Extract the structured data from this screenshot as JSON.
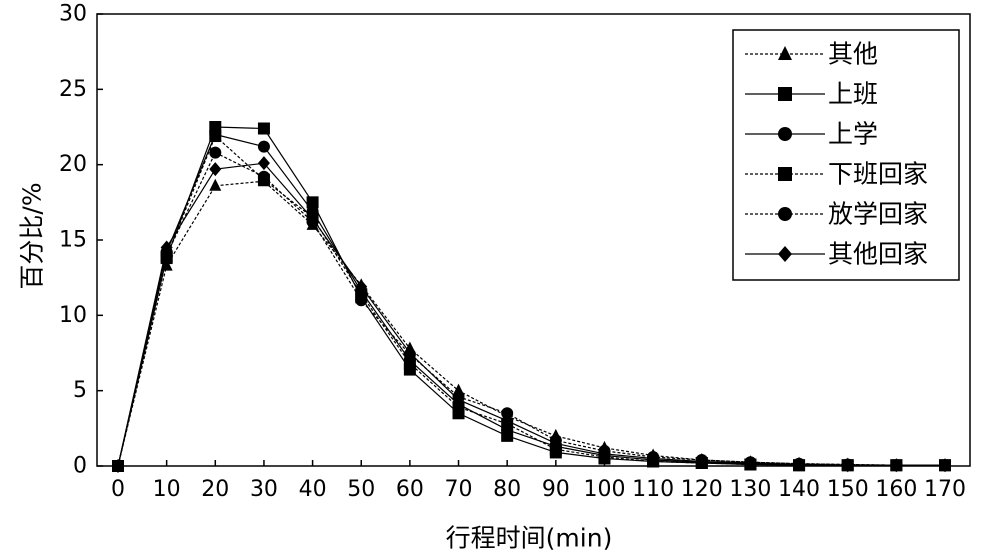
{
  "chart_data": {
    "type": "line",
    "title": "",
    "xlabel": "行程时间(min)",
    "ylabel": "百分比/%",
    "xlim": [
      0,
      170
    ],
    "ylim": [
      0,
      30
    ],
    "x_ticks": [
      "0",
      "10",
      "20",
      "30",
      "40",
      "50",
      "60",
      "70",
      "80",
      "90",
      "100",
      "110",
      "120",
      "130",
      "140",
      "150",
      "160",
      "170"
    ],
    "y_ticks": [
      "0",
      "5",
      "10",
      "15",
      "20",
      "25",
      "30"
    ],
    "grid": false,
    "legend_position": "top-right",
    "series": [
      {
        "name": "其他",
        "marker": "triangle",
        "line": "dashed",
        "x": [
          0,
          10,
          20,
          30,
          40,
          50,
          60,
          70,
          80,
          90,
          100,
          110,
          120,
          130,
          140,
          150,
          160,
          170
        ],
        "y": [
          0,
          13.3,
          18.6,
          18.9,
          16.0,
          12.0,
          7.8,
          5.0,
          3.3,
          2.0,
          1.2,
          0.7,
          0.4,
          0.25,
          0.15,
          0.1,
          0.05,
          0.05
        ]
      },
      {
        "name": "上班",
        "marker": "square",
        "line": "solid",
        "x": [
          0,
          10,
          20,
          30,
          40,
          50,
          60,
          70,
          80,
          90,
          100,
          110,
          120,
          130,
          140,
          150,
          160,
          170
        ],
        "y": [
          0,
          13.8,
          22.5,
          22.4,
          17.5,
          11.2,
          6.4,
          3.5,
          2.0,
          0.9,
          0.5,
          0.3,
          0.2,
          0.1,
          0.05,
          0.05,
          0.05,
          0.05
        ]
      },
      {
        "name": "上学",
        "marker": "circle",
        "line": "solid",
        "x": [
          0,
          10,
          20,
          30,
          40,
          50,
          60,
          70,
          80,
          90,
          100,
          110,
          120,
          130,
          140,
          150,
          160,
          170
        ],
        "y": [
          0,
          14.2,
          22.0,
          21.2,
          16.9,
          11.6,
          7.0,
          4.1,
          2.4,
          1.3,
          0.7,
          0.4,
          0.25,
          0.15,
          0.1,
          0.05,
          0.05,
          0.05
        ]
      },
      {
        "name": "下班回家",
        "marker": "square",
        "line": "dashed",
        "x": [
          0,
          10,
          20,
          30,
          40,
          50,
          60,
          70,
          80,
          90,
          100,
          110,
          120,
          130,
          140,
          150,
          160,
          170
        ],
        "y": [
          0,
          13.9,
          21.9,
          19.0,
          16.5,
          11.4,
          6.8,
          3.9,
          2.8,
          1.1,
          0.6,
          0.3,
          0.2,
          0.1,
          0.05,
          0.05,
          0.05,
          0.05
        ]
      },
      {
        "name": "放学回家",
        "marker": "circle",
        "line": "dashed",
        "x": [
          0,
          10,
          20,
          30,
          40,
          50,
          60,
          70,
          80,
          90,
          100,
          110,
          120,
          130,
          140,
          150,
          160,
          170
        ],
        "y": [
          0,
          14.0,
          20.8,
          19.2,
          16.2,
          11.0,
          7.4,
          4.6,
          3.5,
          1.7,
          1.0,
          0.6,
          0.4,
          0.25,
          0.15,
          0.1,
          0.05,
          0.05
        ]
      },
      {
        "name": "其他回家",
        "marker": "diamond",
        "line": "solid",
        "x": [
          0,
          10,
          20,
          30,
          40,
          50,
          60,
          70,
          80,
          90,
          100,
          110,
          120,
          130,
          140,
          150,
          160,
          170
        ],
        "y": [
          0,
          14.5,
          19.7,
          20.1,
          16.4,
          11.9,
          7.5,
          4.4,
          3.0,
          1.5,
          0.8,
          0.5,
          0.3,
          0.2,
          0.1,
          0.05,
          0.05,
          0.05
        ]
      }
    ]
  }
}
